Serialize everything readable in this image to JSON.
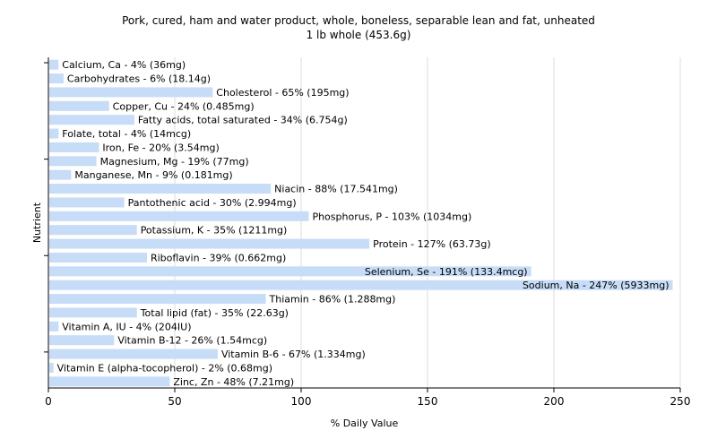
{
  "chart_data": {
    "type": "bar",
    "orientation": "horizontal",
    "title": "Pork, cured, ham and water product, whole, boneless, separable lean and fat, unheated",
    "subtitle": "1 lb whole (453.6g)",
    "xlabel": "% Daily Value",
    "ylabel": "Nutrient",
    "xlim": [
      0,
      250
    ],
    "xticks": [
      0,
      50,
      100,
      150,
      200,
      250
    ],
    "grid": true,
    "bar_color": "#c6dcf7",
    "categories": [
      "Calcium, Ca",
      "Carbohydrates",
      "Cholesterol",
      "Copper, Cu",
      "Fatty acids, total saturated",
      "Folate, total",
      "Iron, Fe",
      "Magnesium, Mg",
      "Manganese, Mn",
      "Niacin",
      "Pantothenic acid",
      "Phosphorus, P",
      "Potassium, K",
      "Protein",
      "Riboflavin",
      "Selenium, Se",
      "Sodium, Na",
      "Thiamin",
      "Total lipid (fat)",
      "Vitamin A, IU",
      "Vitamin B-12",
      "Vitamin B-6",
      "Vitamin E (alpha-tocopherol)",
      "Zinc, Zn"
    ],
    "values": [
      4,
      6,
      65,
      24,
      34,
      4,
      20,
      19,
      9,
      88,
      30,
      103,
      35,
      127,
      39,
      191,
      247,
      86,
      35,
      4,
      26,
      67,
      2,
      48
    ],
    "labels": [
      "Calcium, Ca - 4% (36mg)",
      "Carbohydrates - 6% (18.14g)",
      "Cholesterol - 65% (195mg)",
      "Copper, Cu - 24% (0.485mg)",
      "Fatty acids, total saturated - 34% (6.754g)",
      "Folate, total - 4% (14mcg)",
      "Iron, Fe - 20% (3.54mg)",
      "Magnesium, Mg - 19% (77mg)",
      "Manganese, Mn - 9% (0.181mg)",
      "Niacin - 88% (17.541mg)",
      "Pantothenic acid - 30% (2.994mg)",
      "Phosphorus, P - 103% (1034mg)",
      "Potassium, K - 35% (1211mg)",
      "Protein - 127% (63.73g)",
      "Riboflavin - 39% (0.662mg)",
      "Selenium, Se - 191% (133.4mcg)",
      "Sodium, Na - 247% (5933mg)",
      "Thiamin - 86% (1.288mg)",
      "Total lipid (fat) - 35% (22.63g)",
      "Vitamin A, IU - 4% (204IU)",
      "Vitamin B-12 - 26% (1.54mcg)",
      "Vitamin B-6 - 67% (1.334mg)",
      "Vitamin E (alpha-tocopherol) - 2% (0.68mg)",
      "Zinc, Zn - 48% (7.21mg)"
    ]
  }
}
